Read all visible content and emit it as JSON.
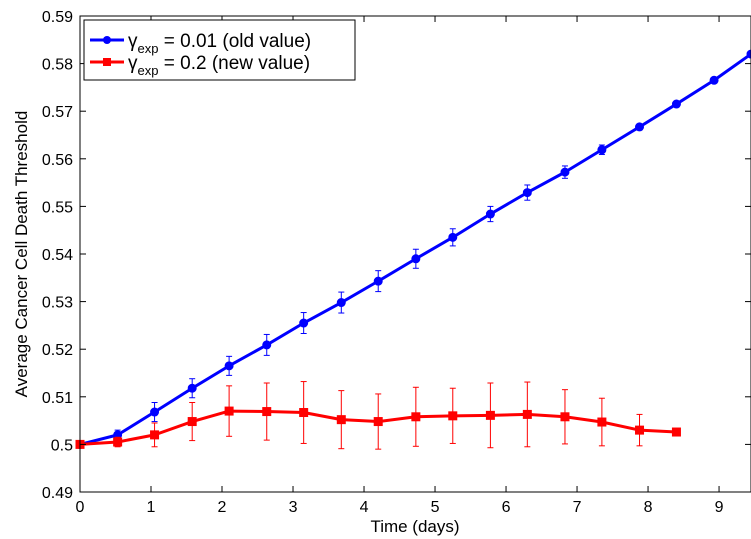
{
  "chart_data": {
    "type": "line",
    "xlabel": "Time (days)",
    "ylabel": "Average Cancer Cell Death Threshold",
    "xlim": [
      0,
      9.45
    ],
    "ylim": [
      0.49,
      0.59
    ],
    "x_ticks": [
      "0",
      "1",
      "2",
      "3",
      "4",
      "5",
      "6",
      "7",
      "8",
      "9"
    ],
    "y_ticks": [
      "0.49",
      "0.5",
      "0.51",
      "0.52",
      "0.53",
      "0.54",
      "0.55",
      "0.56",
      "0.57",
      "0.58",
      "0.59"
    ],
    "grid": false,
    "legend_position": "top-left",
    "series": [
      {
        "name_symbol": "γ",
        "name_subscript": "exp",
        "name_rest": " = 0.01 (old value)",
        "color": "#0000ff",
        "marker": "circle",
        "points": [
          {
            "x": 0.0,
            "y": 0.5,
            "err": 0.0
          },
          {
            "x": 0.53,
            "y": 0.502,
            "err": 0.001
          },
          {
            "x": 1.05,
            "y": 0.5068,
            "err": 0.002
          },
          {
            "x": 1.58,
            "y": 0.5118,
            "err": 0.002
          },
          {
            "x": 2.1,
            "y": 0.5165,
            "err": 0.002
          },
          {
            "x": 2.63,
            "y": 0.5209,
            "err": 0.0022
          },
          {
            "x": 3.15,
            "y": 0.5255,
            "err": 0.0022
          },
          {
            "x": 3.68,
            "y": 0.5298,
            "err": 0.0022
          },
          {
            "x": 4.2,
            "y": 0.5343,
            "err": 0.0022
          },
          {
            "x": 4.73,
            "y": 0.539,
            "err": 0.002
          },
          {
            "x": 5.25,
            "y": 0.5435,
            "err": 0.0018
          },
          {
            "x": 5.78,
            "y": 0.5484,
            "err": 0.0016
          },
          {
            "x": 6.3,
            "y": 0.5529,
            "err": 0.0016
          },
          {
            "x": 6.83,
            "y": 0.5572,
            "err": 0.0013
          },
          {
            "x": 7.35,
            "y": 0.5619,
            "err": 0.001
          },
          {
            "x": 7.88,
            "y": 0.5667,
            "err": 0.0006
          },
          {
            "x": 8.4,
            "y": 0.5715,
            "err": 0.0004
          },
          {
            "x": 8.93,
            "y": 0.5765,
            "err": 0.0002
          },
          {
            "x": 9.45,
            "y": 0.582,
            "err": 0.0
          }
        ]
      },
      {
        "name_symbol": "γ",
        "name_subscript": "exp",
        "name_rest": " = 0.2 (new value)",
        "color": "#ff0000",
        "marker": "square",
        "points": [
          {
            "x": 0.0,
            "y": 0.5,
            "err": 0.0
          },
          {
            "x": 0.53,
            "y": 0.5005,
            "err": 0.001
          },
          {
            "x": 1.05,
            "y": 0.502,
            "err": 0.0025
          },
          {
            "x": 1.58,
            "y": 0.5048,
            "err": 0.004
          },
          {
            "x": 2.1,
            "y": 0.507,
            "err": 0.0053
          },
          {
            "x": 2.63,
            "y": 0.5069,
            "err": 0.006
          },
          {
            "x": 3.15,
            "y": 0.5067,
            "err": 0.0065
          },
          {
            "x": 3.68,
            "y": 0.5052,
            "err": 0.0061
          },
          {
            "x": 4.2,
            "y": 0.5048,
            "err": 0.0058
          },
          {
            "x": 4.73,
            "y": 0.5058,
            "err": 0.0062
          },
          {
            "x": 5.25,
            "y": 0.506,
            "err": 0.0058
          },
          {
            "x": 5.78,
            "y": 0.5061,
            "err": 0.0068
          },
          {
            "x": 6.3,
            "y": 0.5063,
            "err": 0.0068
          },
          {
            "x": 6.83,
            "y": 0.5058,
            "err": 0.0057
          },
          {
            "x": 7.35,
            "y": 0.5047,
            "err": 0.005
          },
          {
            "x": 7.88,
            "y": 0.503,
            "err": 0.0033
          },
          {
            "x": 8.4,
            "y": 0.5026,
            "err": 0.0005
          }
        ]
      }
    ]
  }
}
